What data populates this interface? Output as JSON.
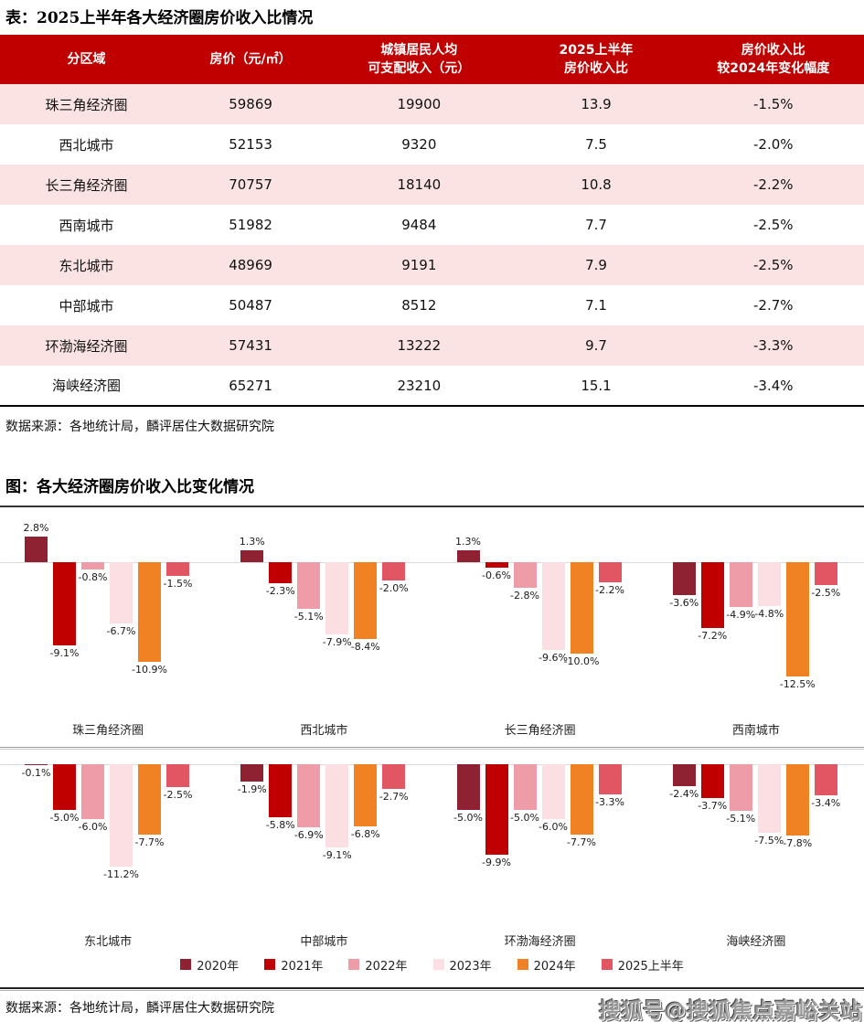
{
  "table_section": {
    "title": "表：2025上半年各大经济圈房价收入比情况",
    "columns": [
      [
        "分区域"
      ],
      [
        "房价（元/㎡）"
      ],
      [
        "城镇居民人均",
        "可支配收入（元）"
      ],
      [
        "2025上半年",
        "房价收入比"
      ],
      [
        "房价收入比",
        "较2024年变化幅度"
      ]
    ],
    "rows": [
      [
        "珠三角经济圈",
        "59869",
        "19900",
        "13.9",
        "-1.5%"
      ],
      [
        "西北城市",
        "52153",
        "9320",
        "7.5",
        "-2.0%"
      ],
      [
        "长三角经济圈",
        "70757",
        "18140",
        "10.8",
        "-2.2%"
      ],
      [
        "西南城市",
        "51982",
        "9484",
        "7.7",
        "-2.5%"
      ],
      [
        "东北城市",
        "48969",
        "9191",
        "7.9",
        "-2.5%"
      ],
      [
        "中部城市",
        "50487",
        "8512",
        "7.1",
        "-2.7%"
      ],
      [
        "环渤海经济圈",
        "57431",
        "13222",
        "9.7",
        "-3.3%"
      ],
      [
        "海峡经济圈",
        "65271",
        "23210",
        "15.1",
        "-3.4%"
      ]
    ],
    "source": "数据来源：各地统计局，麟评居住大数据研究院",
    "header_bg_color": "#C00000",
    "stripe_color": "#FBE3E3"
  },
  "chart_section": {
    "title": "图：各大经济圈房价收入比变化情况",
    "source": "数据来源：各地统计局，麟评居住大数据研究院",
    "watermark": "搜狐号@搜狐焦点嘉峪关站"
  },
  "chart_data": {
    "type": "bar",
    "unit": "%",
    "title": "各大经济圈房价收入比变化情况",
    "series_labels": [
      "2020年",
      "2021年",
      "2022年",
      "2023年",
      "2024年",
      "2025上半年"
    ],
    "colors": [
      "#8E2233",
      "#C00000",
      "#EE9CA8",
      "#FBDFE3",
      "#F08223",
      "#E25563"
    ],
    "groups": [
      {
        "name": "珠三角经济圈",
        "values": [
          2.8,
          -9.1,
          -0.8,
          -6.7,
          -10.9,
          -1.5
        ]
      },
      {
        "name": "西北城市",
        "values": [
          1.3,
          -2.3,
          -5.1,
          -7.9,
          -8.4,
          -2.0
        ]
      },
      {
        "name": "长三角经济圈",
        "values": [
          1.3,
          -0.6,
          -2.8,
          -9.6,
          -10.0,
          -2.2
        ]
      },
      {
        "name": "西南城市",
        "values": [
          -3.6,
          -7.2,
          -4.9,
          -4.8,
          -12.5,
          -2.5
        ]
      },
      {
        "name": "东北城市",
        "values": [
          -0.1,
          -5.0,
          -6.0,
          -11.2,
          -7.7,
          -2.5
        ]
      },
      {
        "name": "中部城市",
        "values": [
          -1.9,
          -5.8,
          -6.9,
          -9.1,
          -6.8,
          -2.7
        ]
      },
      {
        "name": "环渤海经济圈",
        "values": [
          -5.0,
          -9.9,
          -5.0,
          -6.0,
          -7.7,
          -3.3
        ]
      },
      {
        "name": "海峡经济圈",
        "values": [
          -2.4,
          -3.7,
          -5.1,
          -7.5,
          -7.8,
          -3.4
        ]
      }
    ],
    "layout": {
      "rows": 2,
      "groups_per_row": 4,
      "legend_position": "bottom",
      "grid": false,
      "value_labels": "outside-end"
    }
  }
}
